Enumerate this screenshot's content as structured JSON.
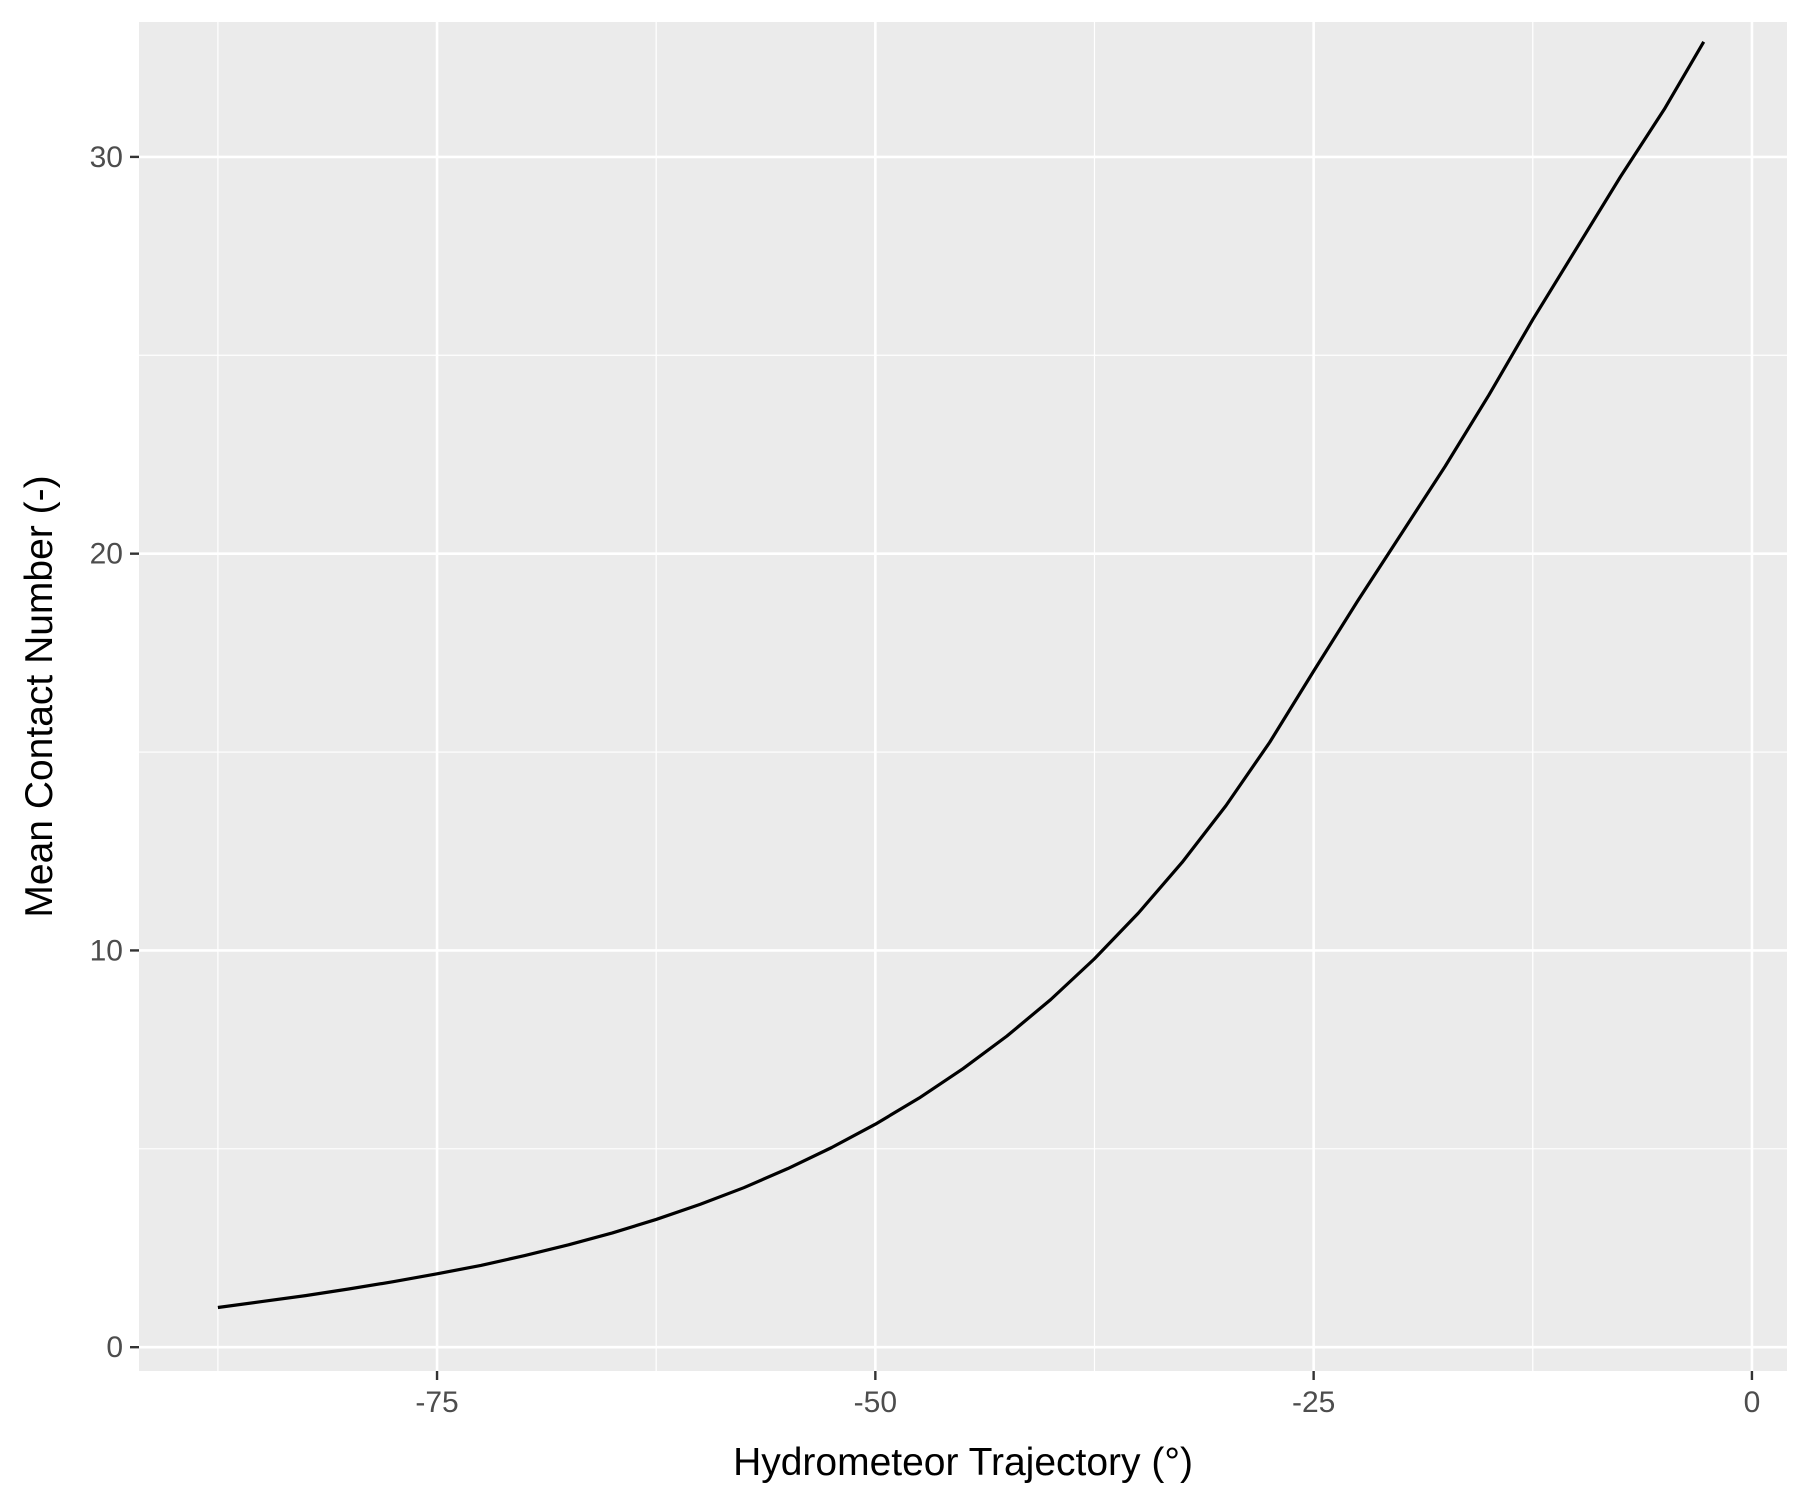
{
  "chart_data": {
    "type": "line",
    "title": "",
    "xlabel": "Hydrometeor Trajectory (°)",
    "ylabel": "Mean Contact Number (-)",
    "xlim": [
      -92,
      2
    ],
    "ylim": [
      -0.6,
      33.4
    ],
    "x_ticks": [
      -75,
      -50,
      -25,
      0
    ],
    "x_tick_labels": [
      "-75",
      "-50",
      "-25",
      "0"
    ],
    "y_ticks": [
      0,
      10,
      20,
      30
    ],
    "y_tick_labels": [
      "0",
      "10",
      "20",
      "30"
    ],
    "grid": true,
    "legend": "none",
    "series": [
      {
        "color": "#000000",
        "x": [
          -87.5,
          -85,
          -82.5,
          -80,
          -77.5,
          -75,
          -72.5,
          -70,
          -67.5,
          -65,
          -62.5,
          -60,
          -57.5,
          -55,
          -52.5,
          -50,
          -47.5,
          -45,
          -42.5,
          -40,
          -37.5,
          -35,
          -32.5,
          -30,
          -27.5,
          -25,
          -22.5,
          -20,
          -17.5,
          -15,
          -12.5,
          -10,
          -7.5,
          -5,
          -2.75
        ],
        "y": [
          1.0,
          1.15,
          1.3,
          1.47,
          1.65,
          1.85,
          2.06,
          2.31,
          2.58,
          2.88,
          3.22,
          3.6,
          4.02,
          4.5,
          5.03,
          5.62,
          6.28,
          7.02,
          7.84,
          8.76,
          9.79,
          10.94,
          12.22,
          13.65,
          15.25,
          17.04,
          18.8,
          20.5,
          22.2,
          24.0,
          25.9,
          27.7,
          29.5,
          31.2,
          32.9
        ]
      }
    ]
  }
}
